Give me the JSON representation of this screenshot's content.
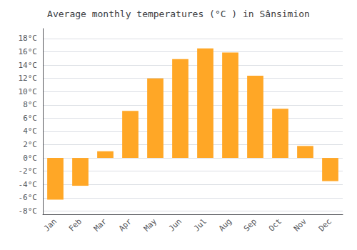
{
  "chart_data": {
    "type": "bar",
    "title": "Average monthly temperatures (°C ) in Sânsimion",
    "categories": [
      "Jan",
      "Feb",
      "Mar",
      "Apr",
      "May",
      "Jun",
      "Jul",
      "Aug",
      "Sep",
      "Oct",
      "Nov",
      "Dec"
    ],
    "values": [
      -6.3,
      -4.2,
      1.0,
      7.1,
      12.0,
      14.9,
      16.5,
      15.9,
      12.4,
      7.4,
      1.8,
      -3.5
    ],
    "color": "#FFA726",
    "ylim": [
      -8.5,
      19.5
    ],
    "yticks": [
      {
        "value": -8,
        "label": "-8°C"
      },
      {
        "value": -6,
        "label": "-6°C"
      },
      {
        "value": -4,
        "label": "-4°C"
      },
      {
        "value": -2,
        "label": "-2°C"
      },
      {
        "value": 0,
        "label": "0°C"
      },
      {
        "value": 2,
        "label": "2°C"
      },
      {
        "value": 4,
        "label": "4°C"
      },
      {
        "value": 6,
        "label": "6°C"
      },
      {
        "value": 8,
        "label": "8°C"
      },
      {
        "value": 10,
        "label": "10°C"
      },
      {
        "value": 12,
        "label": "12°C"
      },
      {
        "value": 14,
        "label": "14°C"
      },
      {
        "value": 16,
        "label": "16°C"
      },
      {
        "value": 18,
        "label": "18°C"
      }
    ],
    "grid": true
  }
}
